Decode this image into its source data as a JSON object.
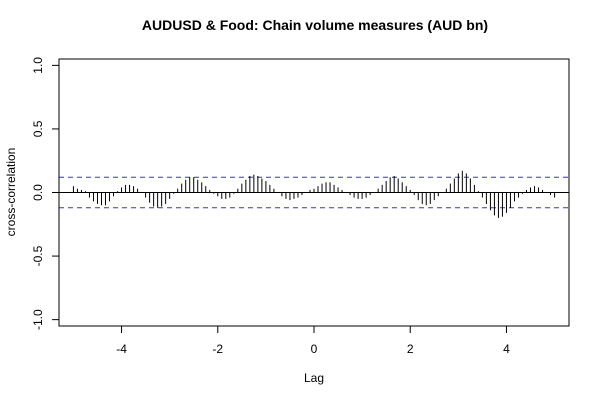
{
  "chart_data": {
    "type": "bar",
    "title": "AUDUSD & Food: Chain volume measures (AUD bn)",
    "xlabel": "Lag",
    "ylabel": "cross-correlation",
    "xlim": [
      -5.3,
      5.3
    ],
    "ylim": [
      -1.05,
      1.05
    ],
    "x_ticks": [
      -4,
      -2,
      0,
      2,
      4
    ],
    "x_tick_labels": [
      "-4",
      "-2",
      "0",
      "2",
      "4"
    ],
    "y_ticks": [
      -1.0,
      -0.5,
      0.0,
      0.5,
      1.0
    ],
    "y_tick_labels": [
      "-1.0",
      "-0.5",
      "0.0",
      "0.5",
      "1.0"
    ],
    "confidence_bounds": [
      0.12,
      -0.12
    ],
    "colors": {
      "bars": "#000000",
      "confidence": "#3333cc",
      "zero_line": "#000000"
    },
    "lags": [
      -5,
      -4.9167,
      -4.8333,
      -4.75,
      -4.6667,
      -4.5833,
      -4.5,
      -4.4167,
      -4.3333,
      -4.25,
      -4.1667,
      -4.0833,
      -4,
      -3.9167,
      -3.8333,
      -3.75,
      -3.6667,
      -3.5833,
      -3.5,
      -3.4167,
      -3.3333,
      -3.25,
      -3.1667,
      -3.0833,
      -3,
      -2.9167,
      -2.8333,
      -2.75,
      -2.6667,
      -2.5833,
      -2.5,
      -2.4167,
      -2.3333,
      -2.25,
      -2.1667,
      -2.0833,
      -2,
      -1.9167,
      -1.8333,
      -1.75,
      -1.6667,
      -1.5833,
      -1.5,
      -1.4167,
      -1.3333,
      -1.25,
      -1.1667,
      -1.0833,
      -1,
      -0.9167,
      -0.8333,
      -0.75,
      -0.6667,
      -0.5833,
      -0.5,
      -0.4167,
      -0.3333,
      -0.25,
      -0.1667,
      -0.0833,
      0,
      0.0833,
      0.1667,
      0.25,
      0.3333,
      0.4167,
      0.5,
      0.5833,
      0.6667,
      0.75,
      0.8333,
      0.9167,
      1,
      1.0833,
      1.1667,
      1.25,
      1.3333,
      1.4167,
      1.5,
      1.5833,
      1.6667,
      1.75,
      1.8333,
      1.9167,
      2,
      2.0833,
      2.1667,
      2.25,
      2.3333,
      2.4167,
      2.5,
      2.5833,
      2.6667,
      2.75,
      2.8333,
      2.9167,
      3,
      3.0833,
      3.1667,
      3.25,
      3.3333,
      3.4167,
      3.5,
      3.5833,
      3.6667,
      3.75,
      3.8333,
      3.9167,
      4,
      4.0833,
      4.1667,
      4.25,
      4.3333,
      4.4167,
      4.5,
      4.5833,
      4.6667,
      4.75,
      4.8333,
      4.9167,
      5
    ],
    "values": [
      0.05,
      0.03,
      0.02,
      0.01,
      -0.04,
      -0.07,
      -0.09,
      -0.1,
      -0.1,
      -0.07,
      -0.03,
      0.01,
      0.04,
      0.06,
      0.06,
      0.05,
      0.03,
      0.0,
      -0.04,
      -0.08,
      -0.11,
      -0.12,
      -0.11,
      -0.09,
      -0.05,
      -0.01,
      0.03,
      0.07,
      0.1,
      0.12,
      0.12,
      0.1,
      0.08,
      0.05,
      0.02,
      -0.01,
      -0.03,
      -0.05,
      -0.05,
      -0.04,
      -0.01,
      0.03,
      0.07,
      0.1,
      0.13,
      0.14,
      0.13,
      0.11,
      0.09,
      0.06,
      0.03,
      0.0,
      -0.03,
      -0.05,
      -0.06,
      -0.05,
      -0.04,
      -0.02,
      0.0,
      0.02,
      0.03,
      0.05,
      0.07,
      0.08,
      0.08,
      0.06,
      0.04,
      0.02,
      0.0,
      -0.02,
      -0.04,
      -0.05,
      -0.05,
      -0.04,
      -0.02,
      0.0,
      0.03,
      0.06,
      0.09,
      0.12,
      0.13,
      0.11,
      0.08,
      0.05,
      0.02,
      -0.02,
      -0.06,
      -0.09,
      -0.1,
      -0.09,
      -0.06,
      -0.03,
      0.0,
      0.03,
      0.07,
      0.11,
      0.15,
      0.17,
      0.15,
      0.11,
      0.06,
      0.01,
      -0.04,
      -0.09,
      -0.14,
      -0.18,
      -0.2,
      -0.19,
      -0.16,
      -0.12,
      -0.07,
      -0.04,
      -0.01,
      0.02,
      0.04,
      0.05,
      0.04,
      0.02,
      0.0,
      -0.02,
      -0.04
    ]
  }
}
